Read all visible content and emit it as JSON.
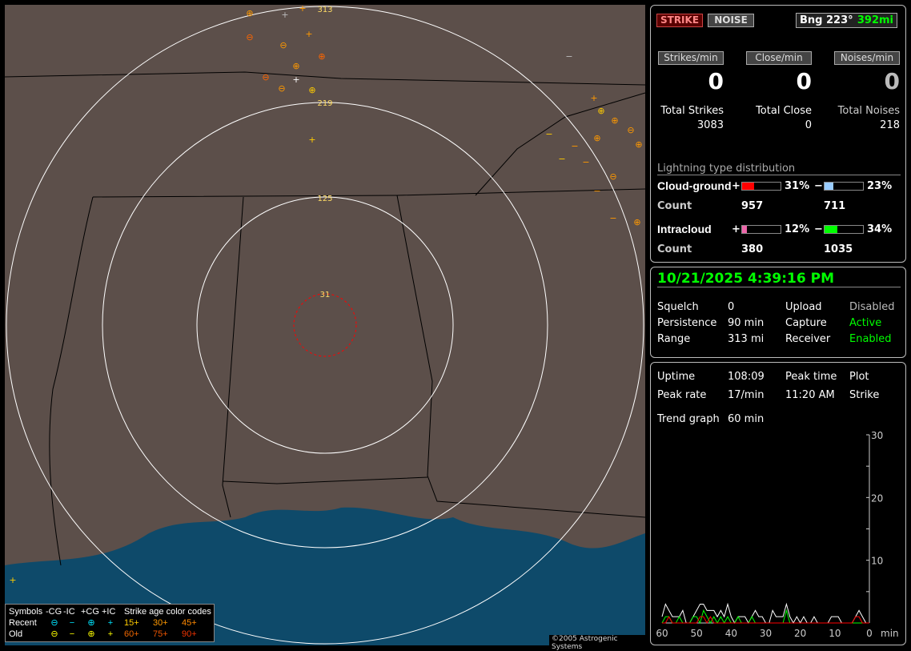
{
  "map": {
    "range_labels": [
      "31",
      "125",
      "219",
      "313"
    ],
    "legend": {
      "header": [
        "Symbols",
        "-CG",
        "-IC",
        "+CG",
        "+IC",
        "Strike age color codes"
      ],
      "recent_label": "Recent",
      "old_label": "Old",
      "recent_symbols": [
        "⊖",
        "−",
        "⊕",
        "+"
      ],
      "old_symbols": [
        "⊖",
        "−",
        "⊕",
        "+"
      ],
      "recent_ages": [
        "15+",
        "30+",
        "45+"
      ],
      "old_ages": [
        "60+",
        "75+",
        "90+"
      ],
      "recent_color": "#00e5ff",
      "old_color": "#ffff00",
      "age_colors": [
        "#ffcc00",
        "#ff9900",
        "#ff8800",
        "#ee6600",
        "#ee5500",
        "#ee3300"
      ]
    },
    "copyright": "©2005 Astrogenic Systems"
  },
  "top": {
    "strike_label": "STRIKE",
    "noise_label": "NOISE",
    "bearing": "Bng 223°",
    "distance": "392mi",
    "rates": [
      {
        "label": "Strikes/min",
        "value": "0"
      },
      {
        "label": "Close/min",
        "value": "0"
      },
      {
        "label": "Noises/min",
        "value": "0"
      }
    ],
    "totals": [
      {
        "label": "Total Strikes",
        "value": "3083"
      },
      {
        "label": "Total Close",
        "value": "0"
      },
      {
        "label": "Total Noises",
        "value": "218"
      }
    ],
    "dist_title": "Lightning type distribution",
    "cg_label": "Cloud-ground",
    "ic_label": "Intracloud",
    "count_label": "Count",
    "plus": "+",
    "minus": "−",
    "cg_pos_pct": "31%",
    "cg_neg_pct": "23%",
    "ic_pos_pct": "12%",
    "ic_neg_pct": "34%",
    "cg_pos_frac": 0.31,
    "cg_neg_frac": 0.23,
    "ic_pos_frac": 0.12,
    "ic_neg_frac": 0.34,
    "cg_pos_count": "957",
    "cg_neg_count": "711",
    "ic_pos_count": "380",
    "ic_neg_count": "1035",
    "colors": {
      "cg_pos": "#ff0000",
      "cg_neg": "#99ccff",
      "ic_pos": "#ee66aa",
      "ic_neg": "#00ff00"
    }
  },
  "status": {
    "datetime": "10/21/2025 4:39:16 PM",
    "rows": [
      [
        "Squelch",
        "0",
        "Upload",
        "Disabled"
      ],
      [
        "Persistence",
        "90 min",
        "Capture",
        "Active"
      ],
      [
        "Range",
        "313 mi",
        "Receiver",
        "Enabled"
      ]
    ]
  },
  "stats": {
    "uptime_label": "Uptime",
    "uptime": "108:09",
    "peak_time_label": "Peak time",
    "plot_label": "Plot",
    "peak_rate_label": "Peak rate",
    "peak_rate": "17/min",
    "peak_time": "11:20 AM",
    "plot": "Strike",
    "trend_label": "Trend graph",
    "trend": "60 min"
  },
  "chart_data": {
    "type": "line",
    "xlabel": "min",
    "x_ticks": [
      "60",
      "50",
      "40",
      "30",
      "20",
      "10",
      "0"
    ],
    "y_ticks": [
      "10",
      "20",
      "30"
    ],
    "xlim": [
      60,
      0
    ],
    "ylim": [
      0,
      30
    ],
    "x": [
      60,
      59,
      58,
      57,
      56,
      55,
      54,
      53,
      52,
      51,
      50,
      49,
      48,
      47,
      46,
      45,
      44,
      43,
      42,
      41,
      40,
      39,
      38,
      37,
      36,
      35,
      34,
      33,
      32,
      31,
      30,
      29,
      28,
      27,
      26,
      25,
      24,
      23,
      22,
      21,
      20,
      19,
      18,
      17,
      16,
      15,
      14,
      13,
      12,
      11,
      10,
      9,
      8,
      7,
      6,
      5,
      4,
      3,
      2,
      1,
      0
    ],
    "series": [
      {
        "color": "#ffffff",
        "values": [
          1,
          3,
          2,
          1,
          1,
          1,
          2,
          0,
          0,
          1,
          2,
          3,
          3,
          2,
          2,
          2,
          1,
          2,
          1,
          3,
          1,
          0,
          1,
          1,
          1,
          0,
          1,
          2,
          1,
          1,
          0,
          0,
          2,
          1,
          1,
          1,
          3,
          1,
          0,
          1,
          0,
          1,
          0,
          0,
          1,
          0,
          0,
          0,
          0,
          1,
          1,
          1,
          0,
          0,
          0,
          0,
          1,
          2,
          1,
          0,
          0
        ]
      },
      {
        "color": "#00ff00",
        "values": [
          0,
          1,
          1,
          0,
          0,
          1,
          0,
          0,
          0,
          1,
          1,
          0,
          2,
          1,
          0,
          1,
          0,
          1,
          0,
          1,
          0,
          0,
          1,
          0,
          0,
          0,
          1,
          0,
          0,
          0,
          0,
          0,
          0,
          0,
          0,
          0,
          2,
          0,
          0,
          0,
          0,
          0,
          0,
          0,
          0,
          0,
          0,
          0,
          0,
          0,
          0,
          0,
          0,
          0,
          0,
          0,
          0,
          0,
          0,
          0,
          0
        ]
      },
      {
        "color": "#ff0000",
        "values": [
          0,
          0,
          1,
          0,
          0,
          0,
          0,
          0,
          0,
          0,
          0,
          1,
          1,
          0,
          1,
          0,
          0,
          0,
          0,
          0,
          0,
          0,
          0,
          0,
          0,
          0,
          0,
          0,
          0,
          0,
          0,
          0,
          0,
          0,
          0,
          0,
          0,
          0,
          0,
          0,
          0,
          0,
          0,
          0,
          0,
          0,
          0,
          0,
          0,
          0,
          0,
          0,
          0,
          0,
          0,
          0,
          1,
          1,
          0,
          0,
          0
        ]
      }
    ]
  }
}
